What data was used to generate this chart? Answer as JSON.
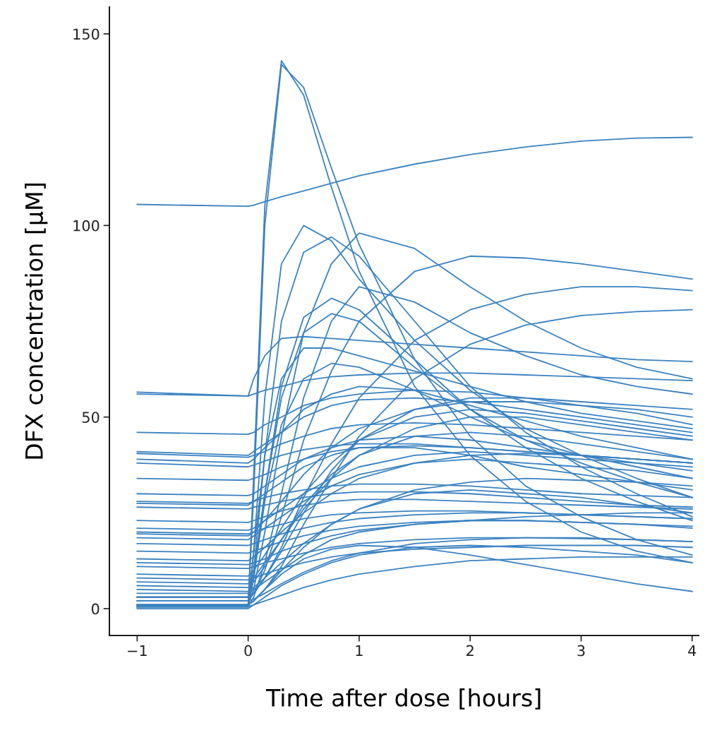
{
  "chart_data": {
    "type": "line",
    "xlabel": "Time after dose [hours]",
    "ylabel": "DFX concentration [μM]",
    "x": [
      -1,
      0,
      0.05,
      0.15,
      0.3,
      0.5,
      0.75,
      1,
      1.5,
      2,
      2.5,
      3,
      3.5,
      4
    ],
    "xlim": [
      -1.25,
      4.06
    ],
    "xticks": [
      {
        "value": -1,
        "label": "−1"
      },
      0,
      1,
      2,
      3,
      4
    ],
    "ylim": [
      -7,
      157
    ],
    "yticks": [
      0,
      50,
      100,
      150
    ],
    "grid": false,
    "series": [
      {
        "color": "#3b82c0",
        "values": [
          105.5,
          105,
          105.3,
          106.2,
          107.5,
          109,
          111,
          113,
          116,
          118.5,
          120.5,
          122,
          122.8,
          123
        ]
      },
      {
        "color": "#3b82c0",
        "values": [
          0.5,
          0.5,
          35,
          105,
          143,
          134,
          110,
          88,
          58,
          40,
          28,
          20,
          15,
          12
        ]
      },
      {
        "color": "#3b82c0",
        "values": [
          1,
          1,
          30,
          100,
          142,
          136,
          115,
          95,
          65,
          45,
          32,
          24,
          18,
          14
        ]
      },
      {
        "color": "#3b82c0",
        "values": [
          0.5,
          0.5,
          15,
          55,
          90,
          100,
          96,
          86,
          70,
          57,
          47,
          40,
          34,
          29
        ]
      },
      {
        "color": "#3b82c0",
        "values": [
          1,
          1,
          5,
          20,
          45,
          72,
          90,
          98,
          94,
          84,
          75,
          68,
          63,
          60
        ]
      },
      {
        "color": "#3b82c0",
        "values": [
          2,
          2,
          4,
          10,
          24,
          44,
          62,
          75,
          88,
          92,
          91.5,
          90,
          88,
          86
        ]
      },
      {
        "color": "#3b82c0",
        "values": [
          3,
          3,
          4,
          8,
          16,
          29,
          43,
          55,
          70,
          78,
          82,
          84,
          84,
          83
        ]
      },
      {
        "color": "#3b82c0",
        "values": [
          1,
          1,
          2,
          5,
          11,
          22,
          34,
          45,
          60,
          69,
          74,
          76.5,
          77.5,
          78
        ]
      },
      {
        "color": "#3b82c0",
        "values": [
          2,
          2,
          10,
          40,
          75,
          93,
          97,
          92,
          75,
          58,
          46,
          37,
          30,
          24
        ]
      },
      {
        "color": "#3b82c0",
        "values": [
          0.5,
          0.5,
          8,
          30,
          58,
          76,
          81,
          78,
          65,
          52,
          42,
          34,
          28,
          23
        ]
      },
      {
        "color": "#3b82c0",
        "values": [
          3,
          3,
          10,
          30,
          55,
          72,
          77,
          75,
          63,
          52,
          44,
          38,
          33,
          29
        ]
      },
      {
        "color": "#3b82c0",
        "values": [
          56.5,
          55.5,
          60,
          66,
          70.5,
          71,
          70.5,
          70,
          69,
          68,
          67,
          66,
          65,
          64.5
        ]
      },
      {
        "color": "#3b82c0",
        "values": [
          56,
          55.5,
          56,
          57,
          58,
          59.5,
          60.5,
          61,
          61.5,
          61.5,
          61,
          60.5,
          60,
          59.5
        ]
      },
      {
        "color": "#3b82c0",
        "values": [
          46,
          45.5,
          46,
          48,
          50,
          53,
          55,
          56,
          57,
          56.5,
          55,
          54,
          53,
          52
        ]
      },
      {
        "color": "#3b82c0",
        "values": [
          41,
          40,
          41,
          43,
          46,
          50,
          53,
          54.5,
          55,
          54,
          52,
          50,
          48,
          46
        ]
      },
      {
        "color": "#3b82c0",
        "values": [
          40.5,
          39.5,
          40,
          41,
          43,
          45,
          47,
          48,
          48.5,
          48,
          47,
          46,
          45,
          44
        ]
      },
      {
        "color": "#3b82c0",
        "values": [
          39,
          38,
          39,
          42,
          46,
          52,
          56,
          58,
          57,
          53,
          49,
          45,
          42,
          39
        ]
      },
      {
        "color": "#3b82c0",
        "values": [
          38,
          37,
          37.5,
          38.5,
          40,
          41.5,
          42.5,
          43,
          43,
          42,
          41,
          40,
          39,
          38
        ]
      },
      {
        "color": "#3b82c0",
        "values": [
          34,
          33.5,
          34,
          35,
          37,
          39,
          41,
          42,
          42.5,
          42,
          41,
          40,
          39,
          38
        ]
      },
      {
        "color": "#3b82c0",
        "values": [
          30,
          29.5,
          30,
          32,
          35,
          39,
          42,
          44,
          45,
          44,
          42,
          40,
          38,
          36
        ]
      },
      {
        "color": "#3b82c0",
        "values": [
          28,
          27.5,
          28,
          29,
          30,
          31,
          32,
          32.5,
          32.5,
          32,
          31,
          30,
          29.5,
          29
        ]
      },
      {
        "color": "#3b82c0",
        "values": [
          27.5,
          27,
          28,
          30,
          33,
          37,
          40,
          42,
          42,
          40,
          37,
          35,
          33,
          31
        ]
      },
      {
        "color": "#3b82c0",
        "values": [
          26.5,
          26,
          26.5,
          27,
          28,
          29,
          30,
          30.5,
          30.5,
          30,
          29,
          28,
          27,
          26.5
        ]
      },
      {
        "color": "#3b82c0",
        "values": [
          23,
          22.5,
          23,
          24,
          25.5,
          27,
          28,
          28.5,
          28.5,
          28,
          27.5,
          27,
          26.5,
          26
        ]
      },
      {
        "color": "#3b82c0",
        "values": [
          21,
          20.5,
          21,
          23,
          26,
          30,
          34,
          37,
          40,
          41,
          40,
          39,
          38,
          37
        ]
      },
      {
        "color": "#3b82c0",
        "values": [
          20,
          19.5,
          20,
          21,
          22,
          23.5,
          24.5,
          25,
          25.5,
          25.5,
          25,
          24.5,
          24,
          23.5
        ]
      },
      {
        "color": "#3b82c0",
        "values": [
          19.5,
          19,
          20,
          23,
          28,
          35,
          42,
          47,
          52,
          54,
          54,
          53,
          52,
          50
        ]
      },
      {
        "color": "#3b82c0",
        "values": [
          18.5,
          18,
          19,
          21,
          24,
          28,
          32,
          35,
          38,
          39,
          38,
          37,
          36,
          34
        ]
      },
      {
        "color": "#3b82c0",
        "values": [
          17,
          16.5,
          17,
          18,
          19.5,
          21,
          22.5,
          23.5,
          24.5,
          25,
          25,
          24.5,
          24,
          23.5
        ]
      },
      {
        "color": "#3b82c0",
        "values": [
          15,
          14.5,
          15,
          16,
          17.5,
          19,
          20.5,
          21.5,
          22.5,
          23,
          23,
          22.5,
          22,
          21.5
        ]
      },
      {
        "color": "#3b82c0",
        "values": [
          13,
          12.5,
          13.5,
          16,
          20,
          25,
          30,
          34,
          38,
          40,
          40.5,
          40,
          39,
          38
        ]
      },
      {
        "color": "#3b82c0",
        "values": [
          12,
          11.5,
          12,
          13,
          15,
          17,
          19,
          20.5,
          22,
          23,
          24,
          24.5,
          25,
          25
        ]
      },
      {
        "color": "#3b82c0",
        "values": [
          11,
          10.5,
          11,
          12,
          13,
          14.5,
          16,
          17,
          18,
          18.5,
          18.5,
          18.3,
          18,
          17.5
        ]
      },
      {
        "color": "#3b82c0",
        "values": [
          9,
          8.5,
          10,
          14,
          21,
          30,
          38,
          44,
          50,
          52,
          51,
          49,
          47,
          45
        ]
      },
      {
        "color": "#3b82c0",
        "values": [
          8,
          7.5,
          8,
          9,
          10.5,
          12,
          13.5,
          14.5,
          15.5,
          16,
          16.5,
          16.5,
          16.5,
          16
        ]
      },
      {
        "color": "#3b82c0",
        "values": [
          7,
          6.5,
          8,
          12,
          18,
          26,
          34,
          40,
          47,
          50,
          50,
          48,
          46,
          44
        ]
      },
      {
        "color": "#3b82c0",
        "values": [
          6,
          5.5,
          7,
          11,
          18,
          27,
          35,
          40,
          45,
          46,
          45,
          43,
          41,
          39
        ]
      },
      {
        "color": "#3b82c0",
        "values": [
          5,
          4.5,
          5.5,
          8,
          12,
          17,
          22,
          26,
          31,
          33,
          34,
          33.5,
          33,
          32
        ]
      },
      {
        "color": "#3b82c0",
        "values": [
          4,
          4,
          5,
          7,
          10,
          14,
          18,
          20,
          22,
          23,
          23,
          22.5,
          22,
          21
        ]
      },
      {
        "color": "#3b82c0",
        "values": [
          3,
          3,
          4,
          8,
          15,
          25,
          36,
          44,
          52,
          55,
          55,
          53,
          51,
          48
        ]
      },
      {
        "color": "#3b82c0",
        "values": [
          2,
          2,
          2.5,
          4,
          6.5,
          9.5,
          12.5,
          14.5,
          17,
          18,
          18.5,
          18.5,
          18,
          17.5
        ]
      },
      {
        "color": "#3b82c0",
        "values": [
          1,
          1,
          2,
          5,
          10,
          16,
          22,
          26,
          30,
          31,
          30,
          29,
          27,
          25
        ]
      },
      {
        "color": "#3b82c0",
        "values": [
          1,
          1,
          2,
          5,
          9,
          13,
          15.5,
          16.5,
          16,
          14,
          11.5,
          9,
          6.5,
          4.5
        ]
      },
      {
        "color": "#3b82c0",
        "values": [
          0.5,
          0.5,
          1,
          2,
          3.5,
          5.5,
          7.5,
          9,
          11,
          12.5,
          13,
          13.5,
          13.5,
          13.5
        ]
      },
      {
        "color": "#3b82c0",
        "values": [
          0.5,
          0.5,
          8,
          28,
          48,
          60,
          64,
          63,
          57,
          50,
          44,
          40,
          37,
          34
        ]
      },
      {
        "color": "#3b82c0",
        "values": [
          1,
          1,
          15,
          40,
          60,
          68,
          68,
          66,
          62,
          58,
          54,
          51,
          49,
          47
        ]
      },
      {
        "color": "#3b82c0",
        "values": [
          0.5,
          0.5,
          3,
          12,
          30,
          55,
          75,
          84,
          80,
          72,
          66,
          61,
          58,
          56
        ]
      },
      {
        "color": "#3b82c0",
        "values": [
          0,
          0,
          1,
          3,
          6,
          9,
          12,
          14,
          16,
          16.5,
          16,
          15,
          14,
          12
        ]
      }
    ]
  }
}
